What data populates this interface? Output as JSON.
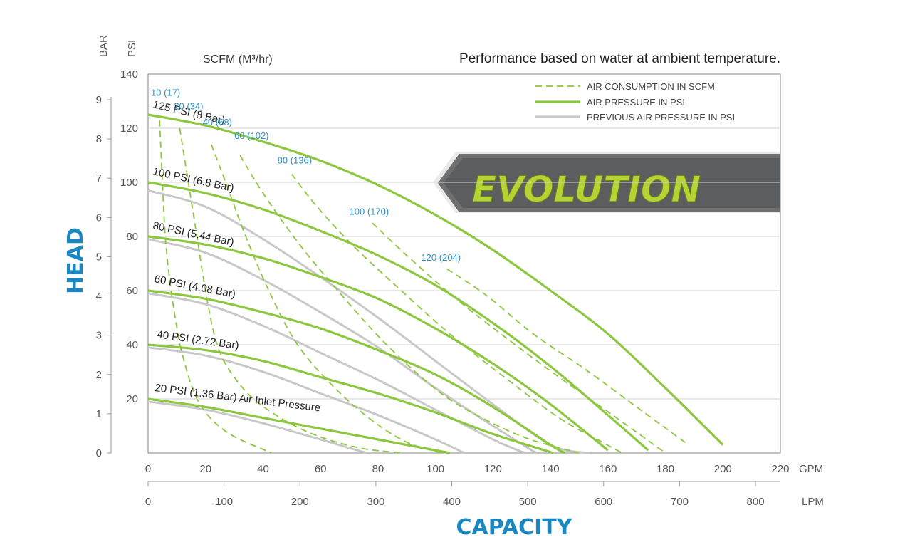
{
  "chart_data": {
    "type": "line",
    "title": "Performance based on water at ambient temperature.",
    "xlabel": "CAPACITY",
    "ylabel": "HEAD",
    "x_unit_primary": "GPM",
    "x_unit_secondary": "LPM",
    "y_unit_left_outer": "BAR",
    "y_unit_left_inner": "PSI",
    "scfm_axis_label": "SCFM (M³/hr)",
    "badge_text": "EVOLUTION",
    "xlim": [
      0,
      220
    ],
    "ylim": [
      0,
      140
    ],
    "x_ticks_gpm": [
      0,
      20,
      40,
      60,
      80,
      100,
      120,
      140,
      160,
      180,
      200,
      220
    ],
    "x_tick_labels_gpm": [
      "0",
      "20",
      "40",
      "60",
      "80",
      "100",
      "120",
      "140",
      "160",
      "180",
      "200",
      "220"
    ],
    "x_ticks_lpm": [
      0,
      100,
      200,
      300,
      400,
      500,
      600,
      700,
      800
    ],
    "x_tick_labels_lpm": [
      "0",
      "100",
      "200",
      "300",
      "400",
      "500",
      "600",
      "700",
      "800"
    ],
    "y_ticks_psi": [
      20,
      40,
      60,
      80,
      100,
      120,
      140
    ],
    "y_tick_labels_psi": [
      "20",
      "40",
      "60",
      "80",
      "100",
      "120",
      "140"
    ],
    "y_ticks_bar": [
      0,
      1,
      2,
      3,
      4,
      5,
      6,
      7,
      8,
      9
    ],
    "y_tick_labels_bar": [
      "0",
      "1",
      "2",
      "3",
      "4",
      "5",
      "6",
      "7",
      "8",
      "9"
    ],
    "grid": true,
    "legend_position": "top-right",
    "legend": [
      {
        "label": "AIR CONSUMPTION IN SCFM",
        "style": "dashed",
        "color": "#8dc63f"
      },
      {
        "label": "AIR PRESSURE IN PSI",
        "style": "solid",
        "color": "#8dc63f"
      },
      {
        "label": "PREVIOUS AIR PRESSURE IN PSI",
        "style": "solid",
        "color": "#c8c8c8"
      }
    ],
    "colors": {
      "current": "#8dc63f",
      "previous": "#c8c8c8",
      "scfm_label": "#2a8fc4",
      "axis_title": "#1a87c0"
    },
    "series": [
      {
        "label": "125 PSI (8 Bar)",
        "kind": "air_pressure",
        "x": [
          0,
          20,
          40,
          60,
          80,
          100,
          120,
          140,
          160,
          180,
          200
        ],
        "y": [
          125,
          121,
          115,
          108,
          99,
          88,
          75,
          60,
          44,
          24,
          3
        ]
      },
      {
        "label": "100 PSI (6.8 Bar)",
        "kind": "air_pressure",
        "x": [
          0,
          20,
          40,
          60,
          80,
          100,
          120,
          140,
          160,
          174
        ],
        "y": [
          100,
          96,
          90,
          82,
          73,
          62,
          48,
          32,
          14,
          1
        ]
      },
      {
        "label": "80 PSI (5.44 Bar)",
        "kind": "air_pressure",
        "x": [
          0,
          20,
          40,
          60,
          80,
          100,
          120,
          140,
          160
        ],
        "y": [
          80,
          77,
          72,
          65,
          57,
          46,
          33,
          18,
          1
        ]
      },
      {
        "label": "60 PSI (4.08 Bar)",
        "kind": "air_pressure",
        "x": [
          0,
          20,
          40,
          60,
          80,
          100,
          120,
          140,
          145
        ],
        "y": [
          60,
          57,
          52,
          46,
          38,
          29,
          17,
          3,
          0
        ]
      },
      {
        "label": "40 PSI (2.72 Bar)",
        "kind": "air_pressure",
        "x": [
          0,
          20,
          40,
          60,
          80,
          100,
          120,
          141
        ],
        "y": [
          40,
          38,
          34,
          28,
          22,
          15,
          7,
          0
        ]
      },
      {
        "label": "20 PSI (1.36 Bar) Air Inlet Pressure",
        "kind": "air_pressure",
        "x": [
          0,
          20,
          40,
          60,
          80,
          100,
          105
        ],
        "y": [
          20,
          17,
          13,
          9,
          5,
          1,
          0
        ]
      },
      {
        "kind": "previous_air_pressure",
        "x": [
          0,
          20,
          40,
          60,
          80,
          100,
          120,
          140,
          153
        ],
        "y": [
          97,
          91,
          79,
          65,
          50,
          34,
          18,
          3,
          0
        ]
      },
      {
        "kind": "previous_air_pressure",
        "x": [
          0,
          20,
          40,
          60,
          80,
          100,
          120,
          135
        ],
        "y": [
          79,
          74,
          64,
          52,
          39,
          24,
          10,
          0
        ]
      },
      {
        "kind": "previous_air_pressure",
        "x": [
          0,
          20,
          40,
          60,
          80,
          100,
          120,
          131
        ],
        "y": [
          59,
          55,
          47,
          37,
          27,
          16,
          5,
          0
        ]
      },
      {
        "kind": "previous_air_pressure",
        "x": [
          0,
          20,
          40,
          60,
          80,
          100,
          110
        ],
        "y": [
          39,
          36,
          30,
          22,
          14,
          5,
          0
        ]
      },
      {
        "kind": "previous_air_pressure",
        "x": [
          0,
          20,
          40,
          60,
          76
        ],
        "y": [
          19,
          16,
          11,
          5,
          0
        ]
      },
      {
        "label": "10 (17)",
        "kind": "air_consumption",
        "x": [
          4,
          5,
          6,
          8,
          11
        ],
        "y": [
          123,
          100,
          80,
          60,
          40
        ]
      },
      {
        "label": "10 (17)",
        "kind": "air_consumption_tail",
        "x": [
          11,
          17,
          27,
          43
        ],
        "y": [
          40,
          20,
          8,
          0
        ]
      },
      {
        "label": "20 (34)",
        "kind": "air_consumption",
        "x": [
          11,
          14,
          17,
          20,
          24,
          30,
          39,
          55,
          73,
          89
        ],
        "y": [
          120,
          100,
          80,
          60,
          40,
          28,
          18,
          8,
          2,
          0
        ]
      },
      {
        "label": "40 (68)",
        "kind": "air_consumption",
        "x": [
          22,
          27,
          34,
          42,
          52,
          65,
          78,
          90,
          102
        ],
        "y": [
          114,
          100,
          80,
          60,
          40,
          24,
          12,
          4,
          0
        ]
      },
      {
        "label": "60 (102)",
        "kind": "air_consumption",
        "x": [
          32,
          40,
          52,
          66,
          83,
          102,
          118,
          133,
          150
        ],
        "y": [
          110,
          96,
          78,
          60,
          40,
          22,
          12,
          5,
          0
        ]
      },
      {
        "label": "80 (136)",
        "kind": "air_consumption",
        "x": [
          50,
          58,
          70,
          86,
          105,
          124,
          143,
          158,
          165
        ],
        "y": [
          103,
          92,
          78,
          62,
          44,
          28,
          13,
          4,
          0
        ]
      },
      {
        "label": "100 (170)",
        "kind": "air_consumption",
        "x": [
          78,
          90,
          106,
          124,
          143,
          163,
          180
        ],
        "y": [
          85,
          73,
          58,
          43,
          28,
          13,
          0
        ]
      },
      {
        "label": "120 (204)",
        "kind": "air_consumption",
        "x": [
          104,
          118,
          134,
          152,
          170,
          188
        ],
        "y": [
          68,
          58,
          44,
          31,
          17,
          3
        ]
      }
    ],
    "scfm_labels": [
      {
        "text": "10 (17)",
        "x": 1,
        "y": 132
      },
      {
        "text": "20 (34)",
        "x": 9,
        "y": 127
      },
      {
        "text": "40 (68)",
        "x": 19,
        "y": 121
      },
      {
        "text": "60 (102)",
        "x": 30,
        "y": 116
      },
      {
        "text": "80 (136)",
        "x": 45,
        "y": 107
      },
      {
        "text": "100 (170)",
        "x": 70,
        "y": 88
      },
      {
        "text": "120 (204)",
        "x": 95,
        "y": 71
      }
    ]
  }
}
